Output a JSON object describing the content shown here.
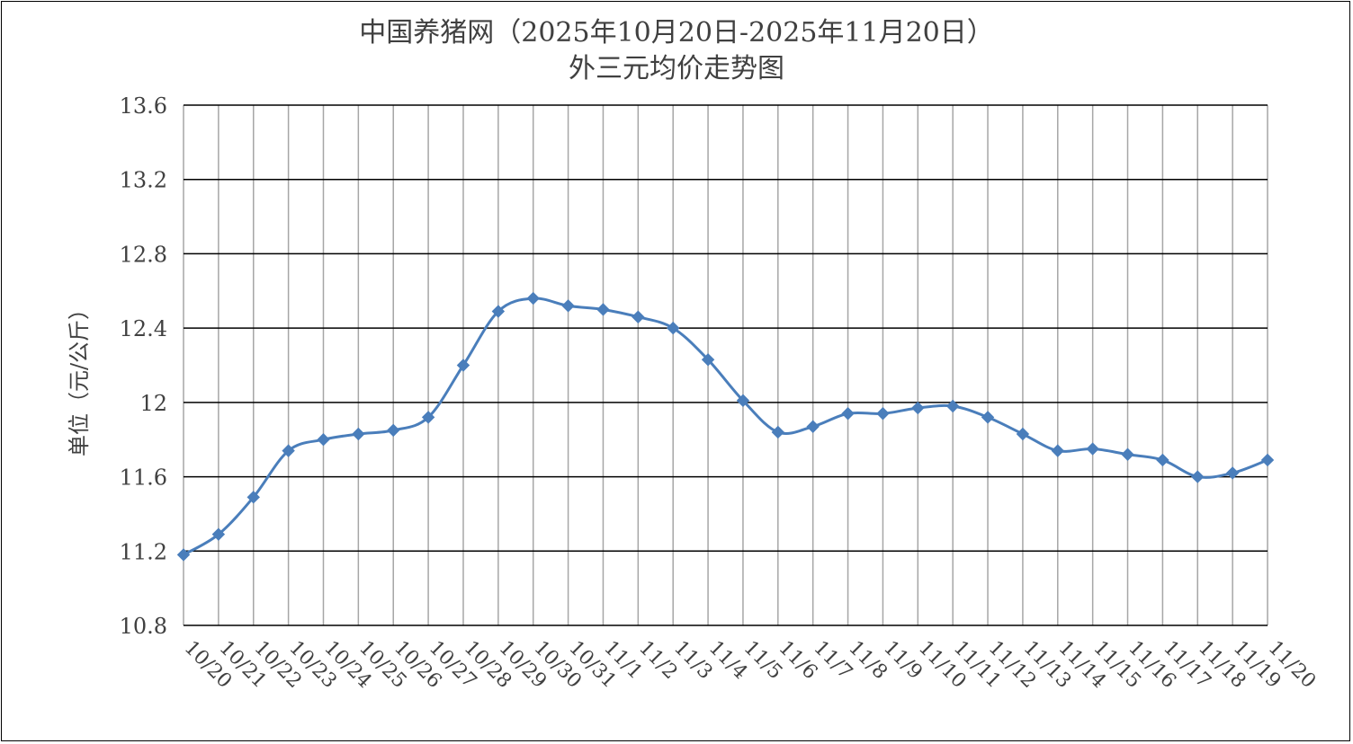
{
  "chart_data": {
    "type": "line",
    "title": "中国养猪网（2025年10月20日-2025年11月20日）",
    "subtitle": "外三元均价走势图",
    "xlabel": "",
    "ylabel": "单位（元/公斤）",
    "ylim": [
      10.8,
      13.6
    ],
    "yticks": [
      "10.8",
      "11.2",
      "11.6",
      "12",
      "12.4",
      "12.8",
      "13.2",
      "13.6"
    ],
    "categories": [
      "10/20",
      "10/21",
      "10/22",
      "10/23",
      "10/24",
      "10/25",
      "10/26",
      "10/27",
      "10/28",
      "10/29",
      "10/30",
      "10/31",
      "11/1",
      "11/2",
      "11/3",
      "11/4",
      "11/5",
      "11/6",
      "11/7",
      "11/8",
      "11/9",
      "11/10",
      "11/11",
      "11/12",
      "11/13",
      "11/14",
      "11/15",
      "11/16",
      "11/17",
      "11/18",
      "11/19",
      "11/20"
    ],
    "values": [
      11.18,
      11.29,
      11.49,
      11.74,
      11.8,
      11.83,
      11.85,
      11.92,
      12.2,
      12.49,
      12.56,
      12.52,
      12.5,
      12.46,
      12.4,
      12.23,
      12.01,
      11.84,
      11.87,
      11.94,
      11.94,
      11.97,
      11.98,
      11.92,
      11.83,
      11.74,
      11.75,
      11.72,
      11.69,
      11.6,
      11.62,
      11.69
    ],
    "grid": true,
    "legend": "none",
    "line_color": "#4a7ebb",
    "marker": "diamond"
  }
}
